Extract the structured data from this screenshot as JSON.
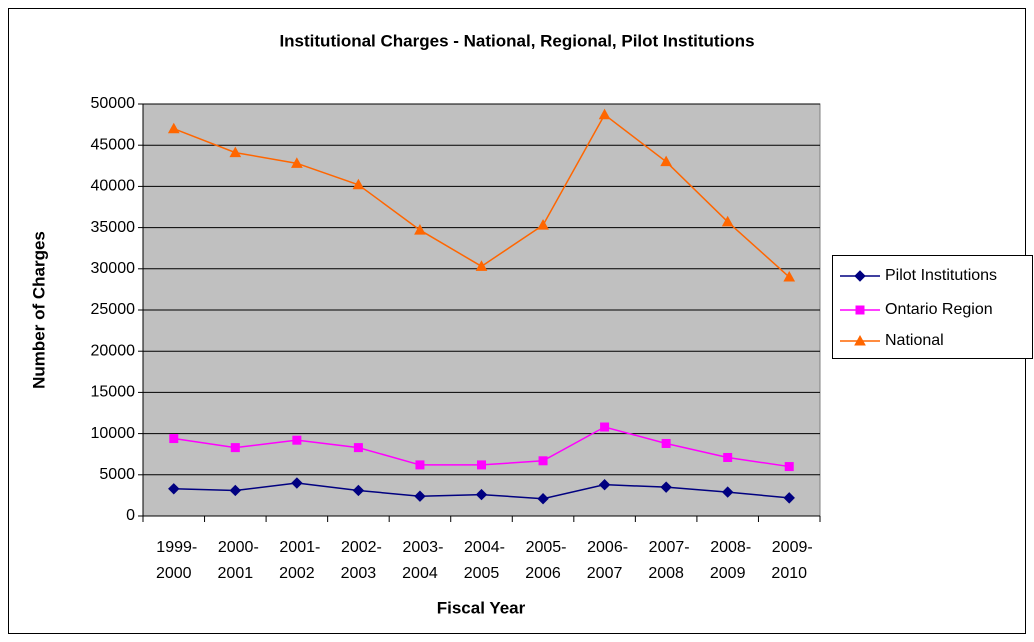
{
  "chart_data": {
    "type": "line",
    "title": "Institutional Charges - National, Regional, Pilot Institutions",
    "x_label": "Fiscal Year",
    "y_label": "Number of Charges",
    "categories": [
      "1999-2000",
      "2000-2001",
      "2001-2002",
      "2002-2003",
      "2003-2004",
      "2004-2005",
      "2005-2006",
      "2006-2007",
      "2007-2008",
      "2008-2009",
      "2009-2010"
    ],
    "series": [
      {
        "name": "Pilot Institutions",
        "color": "#000080",
        "marker": "diamond",
        "values": [
          3300,
          3100,
          4000,
          3100,
          2400,
          2600,
          2100,
          3800,
          3500,
          2900,
          2200
        ]
      },
      {
        "name": "Ontario Region",
        "color": "#ff00ff",
        "marker": "square",
        "values": [
          9400,
          8300,
          9200,
          8300,
          6200,
          6200,
          6700,
          10800,
          8800,
          7100,
          6000
        ]
      },
      {
        "name": "National",
        "color": "#ff6600",
        "marker": "triangle",
        "values": [
          47000,
          44100,
          42800,
          40200,
          34700,
          30300,
          35300,
          48700,
          43000,
          35700,
          29000
        ]
      }
    ],
    "ylim": [
      0,
      50000
    ],
    "yticks": [
      0,
      5000,
      10000,
      15000,
      20000,
      25000,
      30000,
      35000,
      40000,
      45000,
      50000
    ],
    "grid": true,
    "legend": "right"
  }
}
